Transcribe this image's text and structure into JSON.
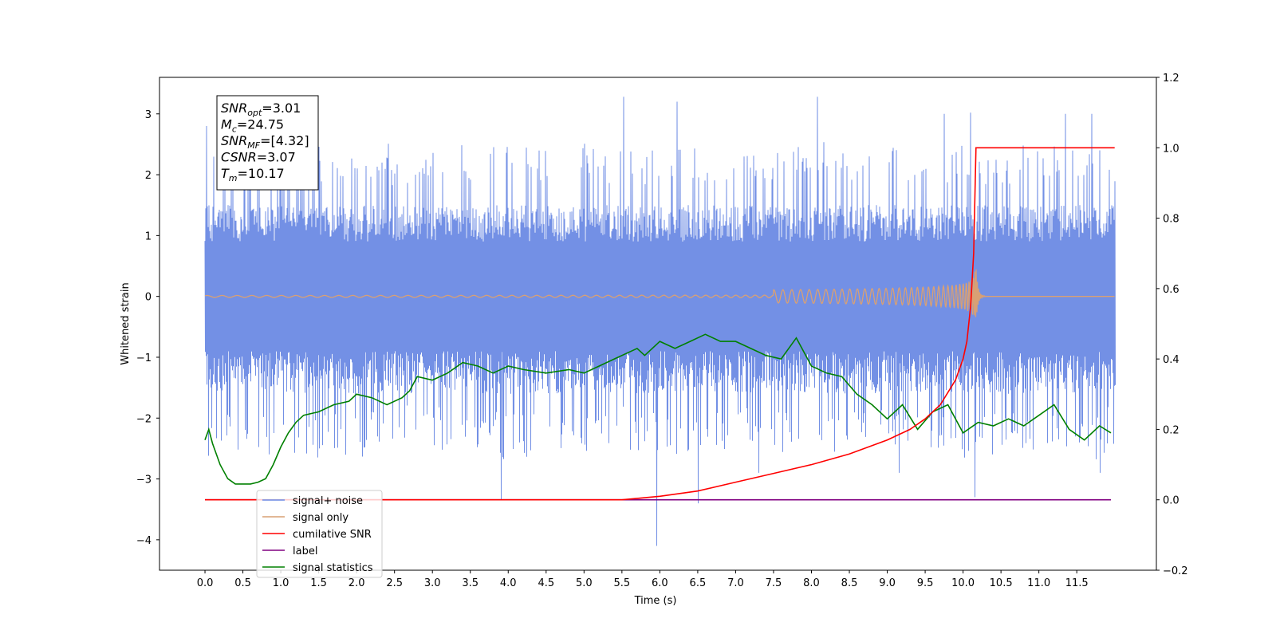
{
  "chart_data": {
    "type": "line",
    "xlabel": "Time (s)",
    "ylabel": "Whitened strain",
    "xlim": [
      -0.6,
      12.55
    ],
    "ylim": [
      -4.5,
      3.6
    ],
    "y2lim": [
      -0.2,
      1.2
    ],
    "x_ticks": [
      "0.0",
      "0.5",
      "1.0",
      "1.5",
      "2.0",
      "2.5",
      "3.0",
      "3.5",
      "4.0",
      "4.5",
      "5.0",
      "5.5",
      "6.0",
      "6.5",
      "7.0",
      "7.5",
      "8.0",
      "8.5",
      "9.0",
      "9.5",
      "10.0",
      "10.5",
      "11.0",
      "11.5"
    ],
    "y_ticks": [
      "3",
      "2",
      "1",
      "0",
      "−1",
      "−2",
      "−3",
      "−4"
    ],
    "y2_ticks": [
      "1.2",
      "1.0",
      "0.8",
      "0.6",
      "0.4",
      "0.2",
      "0.0",
      "−0.2"
    ],
    "grid": false,
    "legend_position": "lower-left",
    "annotation": {
      "lines": [
        {
          "sym": "SNR",
          "sub": "opt",
          "val": "=3.01"
        },
        {
          "sym": "M",
          "sub": "c",
          "val": "=24.75"
        },
        {
          "sym": "SNR",
          "sub": "MF",
          "val": "=[4.32]"
        },
        {
          "sym": "CSNR",
          "sub": "",
          "val": "=3.07"
        },
        {
          "sym": "T",
          "sub": "m",
          "val": "=10.17"
        }
      ]
    },
    "series": [
      {
        "name": "signal+ noise",
        "color": "#6c8ae4",
        "axis": "left",
        "x_range": [
          0.0,
          12.0
        ],
        "band": [
          -1.3,
          1.35
        ],
        "spikes": [
          [
            0.02,
            2.8
          ],
          [
            5.52,
            3.28
          ],
          [
            6.23,
            3.2
          ],
          [
            8.08,
            3.28
          ],
          [
            9.75,
            3.0
          ],
          [
            10.1,
            3.02
          ],
          [
            11.35,
            3.0
          ],
          [
            11.7,
            3.0
          ],
          [
            3.9,
            -3.35
          ],
          [
            5.95,
            -4.1
          ],
          [
            6.5,
            -3.4
          ],
          [
            7.3,
            -2.9
          ],
          [
            9.15,
            -2.9
          ],
          [
            10.15,
            -3.3
          ],
          [
            11.8,
            -2.9
          ]
        ]
      },
      {
        "name": "signal only",
        "color": "#d9a074",
        "axis": "left",
        "merger_time": 10.17,
        "peak_amplitude": 0.55
      },
      {
        "name": "cumilative SNR",
        "color": "#ff0000",
        "axis": "right",
        "x": [
          0.0,
          5.5,
          6.0,
          6.5,
          7.0,
          7.5,
          8.0,
          8.5,
          9.0,
          9.3,
          9.5,
          9.7,
          9.9,
          10.0,
          10.05,
          10.1,
          10.14,
          10.17,
          12.0
        ],
        "y": [
          0.0,
          0.0,
          0.01,
          0.025,
          0.05,
          0.075,
          0.1,
          0.13,
          0.17,
          0.2,
          0.23,
          0.27,
          0.34,
          0.4,
          0.45,
          0.55,
          0.7,
          1.0,
          1.0
        ]
      },
      {
        "name": "label",
        "color": "#800080",
        "axis": "right",
        "x": [
          0.0,
          11.95
        ],
        "y": [
          0.0,
          0.0
        ]
      },
      {
        "name": "signal statistics",
        "color": "#008000",
        "axis": "right",
        "x": [
          0.0,
          0.05,
          0.1,
          0.2,
          0.3,
          0.4,
          0.5,
          0.6,
          0.7,
          0.8,
          0.9,
          1.0,
          1.1,
          1.2,
          1.3,
          1.5,
          1.7,
          1.9,
          2.0,
          2.2,
          2.4,
          2.6,
          2.7,
          2.8,
          3.0,
          3.2,
          3.4,
          3.6,
          3.8,
          4.0,
          4.2,
          4.5,
          4.8,
          5.0,
          5.2,
          5.4,
          5.6,
          5.7,
          5.8,
          6.0,
          6.2,
          6.4,
          6.6,
          6.8,
          7.0,
          7.2,
          7.4,
          7.6,
          7.8,
          8.0,
          8.2,
          8.4,
          8.6,
          8.8,
          9.0,
          9.2,
          9.4,
          9.6,
          9.8,
          10.0,
          10.2,
          10.4,
          10.6,
          10.8,
          11.0,
          11.2,
          11.4,
          11.6,
          11.8,
          11.95
        ],
        "y": [
          0.17,
          0.2,
          0.16,
          0.1,
          0.06,
          0.045,
          0.045,
          0.045,
          0.05,
          0.06,
          0.1,
          0.15,
          0.19,
          0.22,
          0.24,
          0.25,
          0.27,
          0.28,
          0.3,
          0.29,
          0.27,
          0.29,
          0.31,
          0.35,
          0.34,
          0.36,
          0.39,
          0.38,
          0.36,
          0.38,
          0.37,
          0.36,
          0.37,
          0.36,
          0.38,
          0.4,
          0.42,
          0.43,
          0.41,
          0.45,
          0.43,
          0.45,
          0.47,
          0.45,
          0.45,
          0.43,
          0.41,
          0.4,
          0.46,
          0.38,
          0.36,
          0.35,
          0.3,
          0.27,
          0.23,
          0.27,
          0.2,
          0.25,
          0.27,
          0.19,
          0.22,
          0.21,
          0.23,
          0.21,
          0.24,
          0.27,
          0.2,
          0.17,
          0.21,
          0.19
        ]
      }
    ]
  }
}
